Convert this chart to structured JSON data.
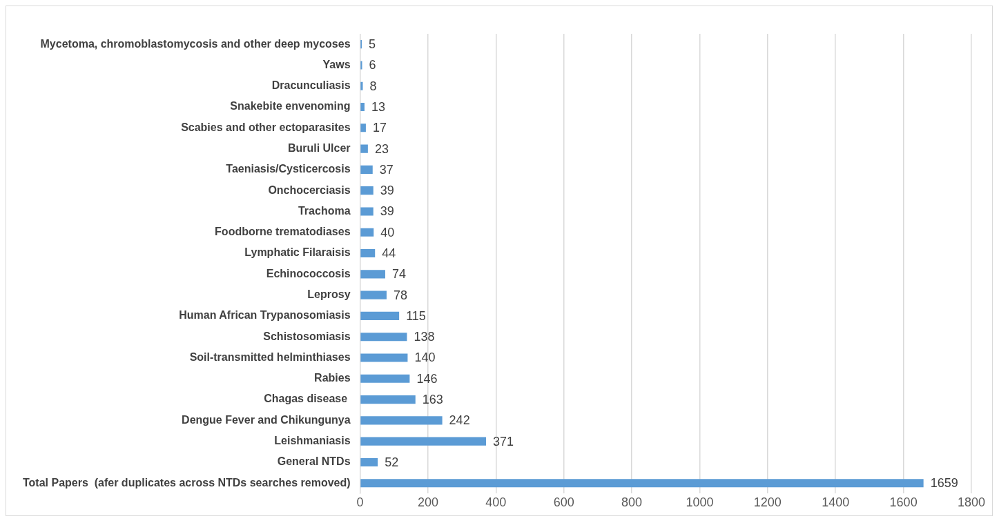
{
  "chart_data": {
    "type": "bar",
    "orientation": "horizontal",
    "categories": [
      "Mycetoma, chromoblastomycosis and other deep mycoses",
      "Yaws",
      "Dracunculiasis",
      "Snakebite envenoming",
      "Scabies and other ectoparasites",
      "Buruli Ulcer",
      "Taeniasis/Cysticercosis",
      "Onchocerciasis",
      "Trachoma",
      "Foodborne trematodiases",
      "Lymphatic Filaraisis",
      "Echinococcosis",
      "Leprosy",
      "Human African Trypanosomiasis",
      "Schistosomiasis",
      "Soil-transmitted helminthiases",
      "Rabies",
      "Chagas disease ",
      "Dengue Fever and Chikungunya",
      "Leishmaniasis",
      "General NTDs",
      "Total Papers  (afer duplicates across NTDs searches removed)"
    ],
    "values": [
      5,
      6,
      8,
      13,
      17,
      23,
      37,
      39,
      39,
      40,
      44,
      74,
      78,
      115,
      138,
      140,
      146,
      163,
      242,
      371,
      52,
      1659
    ],
    "color": "#5b9bd5",
    "xlim": [
      0,
      1800
    ],
    "xticks": [
      0,
      200,
      400,
      600,
      800,
      1000,
      1200,
      1400,
      1600,
      1800
    ],
    "grid": "x",
    "data_labels": true,
    "legend": false
  }
}
